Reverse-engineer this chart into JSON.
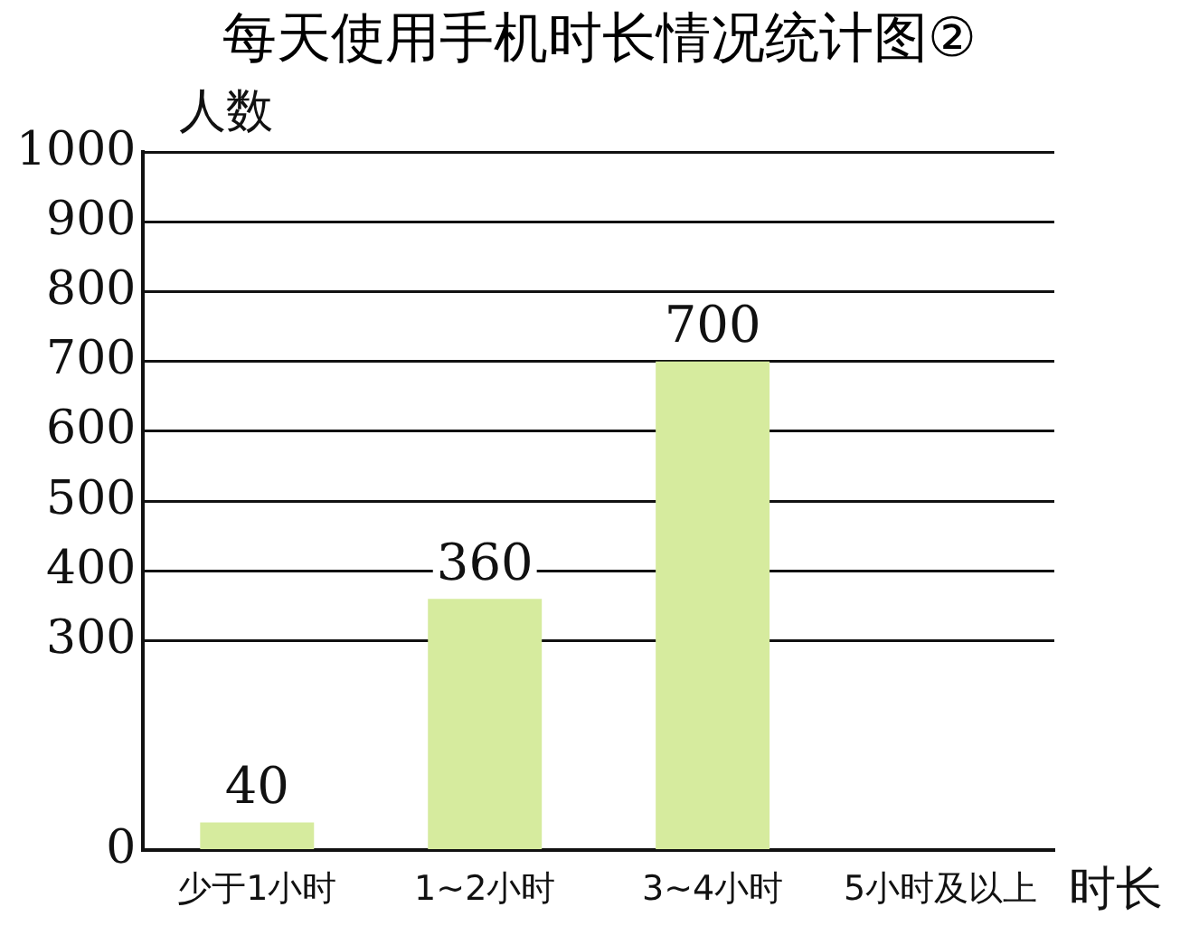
{
  "chart_data": {
    "type": "bar",
    "title": "每天使用手机时长情况统计图②",
    "xlabel": "时长",
    "ylabel": "人数",
    "categories": [
      "少于1小时",
      "1~2小时",
      "3~4小时",
      "5小时及以上"
    ],
    "values": [
      40,
      360,
      700,
      null
    ],
    "color": "#d6eb9e",
    "ylim": [
      0,
      1000
    ],
    "yticks": [
      0,
      300,
      400,
      500,
      600,
      700,
      800,
      900,
      1000
    ],
    "grid": "y",
    "data_labels": true,
    "legend": false
  }
}
